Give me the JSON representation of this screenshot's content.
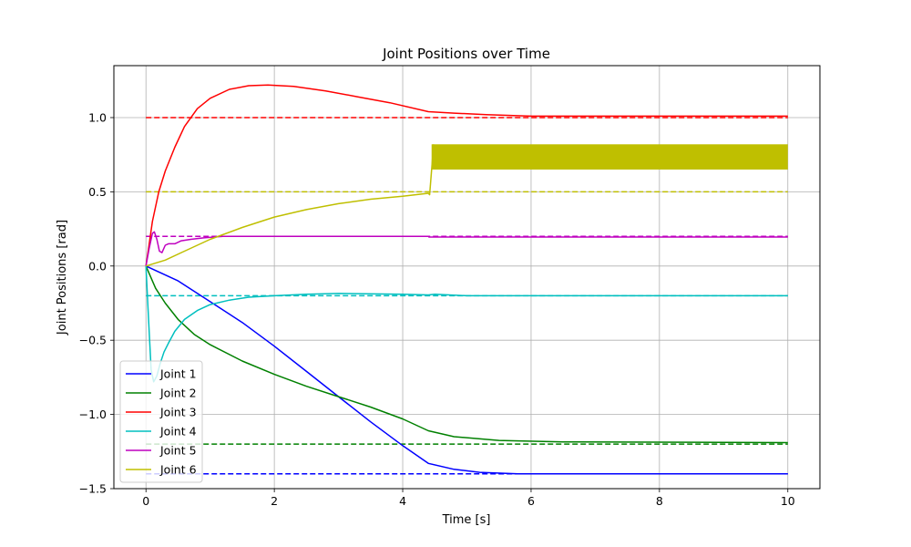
{
  "chart_data": {
    "type": "line",
    "title": "Joint Positions over Time",
    "xlabel": "Time [s]",
    "ylabel": "Joint Positions [rad]",
    "xlim": [
      -0.5,
      10.5
    ],
    "ylim": [
      -1.5,
      1.35
    ],
    "xticks": [
      0,
      2,
      4,
      6,
      8,
      10
    ],
    "xtick_labels": [
      "0",
      "2",
      "4",
      "6",
      "8",
      "10"
    ],
    "yticks": [
      -1.5,
      -1.0,
      -0.5,
      0.0,
      0.5,
      1.0
    ],
    "ytick_labels": [
      "−1.5",
      "−1.0",
      "−0.5",
      "0.0",
      "0.5",
      "1.0"
    ],
    "grid": true,
    "legend_position": "lower-left",
    "series": [
      {
        "name": "Joint 1",
        "color": "#0000ff",
        "target": -1.4,
        "points": [
          [
            0,
            0
          ],
          [
            0.2,
            -0.04
          ],
          [
            0.5,
            -0.1
          ],
          [
            1.0,
            -0.24
          ],
          [
            1.5,
            -0.38
          ],
          [
            2.0,
            -0.54
          ],
          [
            2.5,
            -0.71
          ],
          [
            3.0,
            -0.88
          ],
          [
            3.5,
            -1.05
          ],
          [
            4.0,
            -1.21
          ],
          [
            4.4,
            -1.33
          ],
          [
            4.8,
            -1.37
          ],
          [
            5.2,
            -1.39
          ],
          [
            5.8,
            -1.4
          ],
          [
            10.0,
            -1.4
          ]
        ]
      },
      {
        "name": "Joint 2",
        "color": "#008000",
        "target": -1.2,
        "points": [
          [
            0,
            0
          ],
          [
            0.15,
            -0.15
          ],
          [
            0.3,
            -0.25
          ],
          [
            0.5,
            -0.36
          ],
          [
            0.75,
            -0.46
          ],
          [
            1.0,
            -0.53
          ],
          [
            1.5,
            -0.64
          ],
          [
            2.0,
            -0.73
          ],
          [
            2.5,
            -0.81
          ],
          [
            3.0,
            -0.88
          ],
          [
            3.5,
            -0.95
          ],
          [
            4.0,
            -1.03
          ],
          [
            4.4,
            -1.11
          ],
          [
            4.8,
            -1.15
          ],
          [
            5.5,
            -1.175
          ],
          [
            6.5,
            -1.185
          ],
          [
            10.0,
            -1.19
          ]
        ]
      },
      {
        "name": "Joint 3",
        "color": "#ff0000",
        "target": 1.0,
        "points": [
          [
            0,
            0
          ],
          [
            0.05,
            0.15
          ],
          [
            0.1,
            0.3
          ],
          [
            0.2,
            0.5
          ],
          [
            0.3,
            0.64
          ],
          [
            0.45,
            0.8
          ],
          [
            0.6,
            0.94
          ],
          [
            0.8,
            1.06
          ],
          [
            1.0,
            1.13
          ],
          [
            1.3,
            1.19
          ],
          [
            1.6,
            1.215
          ],
          [
            1.9,
            1.22
          ],
          [
            2.3,
            1.21
          ],
          [
            2.8,
            1.18
          ],
          [
            3.3,
            1.14
          ],
          [
            3.8,
            1.1
          ],
          [
            4.4,
            1.04
          ],
          [
            4.8,
            1.03
          ],
          [
            5.3,
            1.02
          ],
          [
            6.0,
            1.01
          ],
          [
            10.0,
            1.01
          ]
        ]
      },
      {
        "name": "Joint 4",
        "color": "#00bfbf",
        "target": -0.2,
        "points": [
          [
            0,
            0
          ],
          [
            0.04,
            -0.35
          ],
          [
            0.08,
            -0.7
          ],
          [
            0.12,
            -0.78
          ],
          [
            0.17,
            -0.74
          ],
          [
            0.22,
            -0.66
          ],
          [
            0.28,
            -0.58
          ],
          [
            0.35,
            -0.52
          ],
          [
            0.45,
            -0.44
          ],
          [
            0.6,
            -0.36
          ],
          [
            0.8,
            -0.3
          ],
          [
            1.0,
            -0.26
          ],
          [
            1.3,
            -0.23
          ],
          [
            1.6,
            -0.21
          ],
          [
            2.0,
            -0.2
          ],
          [
            2.5,
            -0.19
          ],
          [
            3.0,
            -0.185
          ],
          [
            4.0,
            -0.19
          ],
          [
            4.4,
            -0.195
          ],
          [
            4.5,
            -0.19
          ],
          [
            5.0,
            -0.2
          ],
          [
            10.0,
            -0.2
          ]
        ]
      },
      {
        "name": "Joint 5",
        "color": "#bf00bf",
        "target": 0.2,
        "points": [
          [
            0,
            0
          ],
          [
            0.05,
            0.12
          ],
          [
            0.1,
            0.22
          ],
          [
            0.13,
            0.23
          ],
          [
            0.17,
            0.18
          ],
          [
            0.21,
            0.1
          ],
          [
            0.25,
            0.09
          ],
          [
            0.3,
            0.14
          ],
          [
            0.35,
            0.15
          ],
          [
            0.45,
            0.15
          ],
          [
            0.55,
            0.17
          ],
          [
            0.7,
            0.18
          ],
          [
            0.9,
            0.19
          ],
          [
            1.2,
            0.2
          ],
          [
            2.0,
            0.2
          ],
          [
            4.4,
            0.2
          ],
          [
            4.41,
            0.195
          ],
          [
            10.0,
            0.195
          ]
        ]
      },
      {
        "name": "Joint 6",
        "color": "#bfbf00",
        "target": 0.5,
        "points": [
          [
            0,
            0
          ],
          [
            0.3,
            0.04
          ],
          [
            0.6,
            0.1
          ],
          [
            1.0,
            0.18
          ],
          [
            1.5,
            0.26
          ],
          [
            2.0,
            0.33
          ],
          [
            2.5,
            0.38
          ],
          [
            3.0,
            0.42
          ],
          [
            3.5,
            0.45
          ],
          [
            4.0,
            0.47
          ],
          [
            4.4,
            0.49
          ],
          [
            4.42,
            0.48
          ],
          [
            4.45,
            0.65
          ],
          [
            4.48,
            0.82
          ]
        ],
        "oscillation": {
          "x_start": 4.45,
          "x_end": 10.0,
          "y_min": 0.65,
          "y_max": 0.82
        }
      }
    ]
  }
}
